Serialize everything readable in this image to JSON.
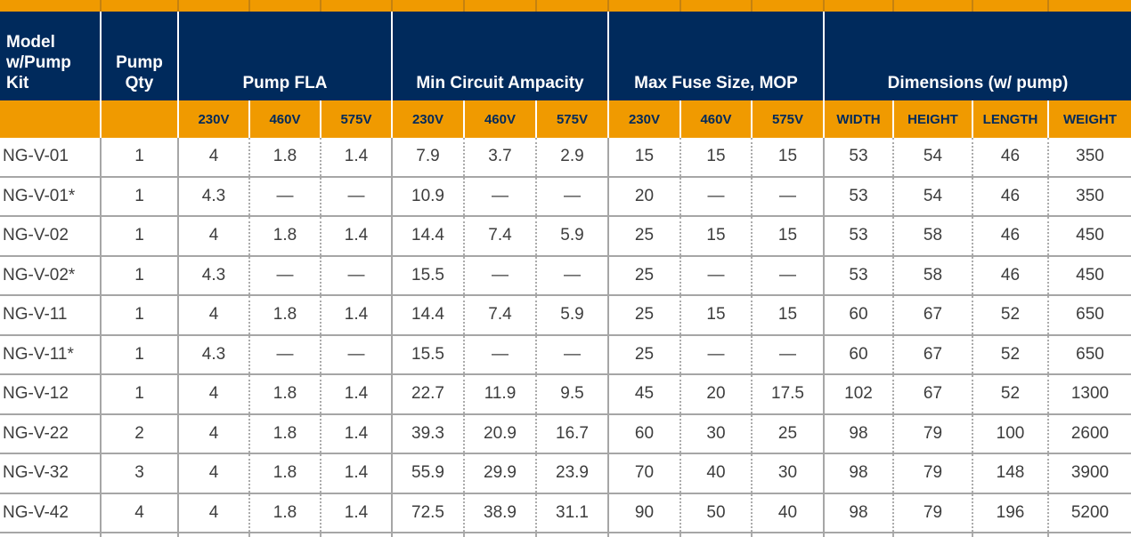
{
  "colors": {
    "navy": "#002A5C",
    "orange": "#F09A00",
    "orange_tick": "#C58210",
    "grid_solid": "#A6A6A6",
    "grid_dotted": "#ABABAB",
    "data_text": "#3D3D3D",
    "header_text": "#FFFFFF"
  },
  "table": {
    "column_groups": [
      {
        "label": "Model\nw/Pump\nKit",
        "span": 1
      },
      {
        "label": "Pump\nQty",
        "span": 1
      },
      {
        "label": "Pump FLA",
        "span": 3
      },
      {
        "label": "Min Circuit Ampacity",
        "span": 3
      },
      {
        "label": "Max Fuse Size, MOP",
        "span": 3
      },
      {
        "label": "Dimensions (w/ pump)",
        "span": 4
      }
    ],
    "subheaders": [
      "",
      "",
      "230V",
      "460V",
      "575V",
      "230V",
      "460V",
      "575V",
      "230V",
      "460V",
      "575V",
      "WIDTH",
      "HEIGHT",
      "LENGTH",
      "WEIGHT"
    ],
    "rows": [
      [
        "NG-V-01",
        "1",
        "4",
        "1.8",
        "1.4",
        "7.9",
        "3.7",
        "2.9",
        "15",
        "15",
        "15",
        "53",
        "54",
        "46",
        "350"
      ],
      [
        "NG-V-01*",
        "1",
        "4.3",
        "—",
        "—",
        "10.9",
        "—",
        "—",
        "20",
        "—",
        "—",
        "53",
        "54",
        "46",
        "350"
      ],
      [
        "NG-V-02",
        "1",
        "4",
        "1.8",
        "1.4",
        "14.4",
        "7.4",
        "5.9",
        "25",
        "15",
        "15",
        "53",
        "58",
        "46",
        "450"
      ],
      [
        "NG-V-02*",
        "1",
        "4.3",
        "—",
        "—",
        "15.5",
        "—",
        "—",
        "25",
        "—",
        "—",
        "53",
        "58",
        "46",
        "450"
      ],
      [
        "NG-V-11",
        "1",
        "4",
        "1.8",
        "1.4",
        "14.4",
        "7.4",
        "5.9",
        "25",
        "15",
        "15",
        "60",
        "67",
        "52",
        "650"
      ],
      [
        "NG-V-11*",
        "1",
        "4.3",
        "—",
        "—",
        "15.5",
        "—",
        "—",
        "25",
        "—",
        "—",
        "60",
        "67",
        "52",
        "650"
      ],
      [
        "NG-V-12",
        "1",
        "4",
        "1.8",
        "1.4",
        "22.7",
        "11.9",
        "9.5",
        "45",
        "20",
        "17.5",
        "102",
        "67",
        "52",
        "1300"
      ],
      [
        "NG-V-22",
        "2",
        "4",
        "1.8",
        "1.4",
        "39.3",
        "20.9",
        "16.7",
        "60",
        "30",
        "25",
        "98",
        "79",
        "100",
        "2600"
      ],
      [
        "NG-V-32",
        "3",
        "4",
        "1.8",
        "1.4",
        "55.9",
        "29.9",
        "23.9",
        "70",
        "40",
        "30",
        "98",
        "79",
        "148",
        "3900"
      ],
      [
        "NG-V-42",
        "4",
        "4",
        "1.8",
        "1.4",
        "72.5",
        "38.9",
        "31.1",
        "90",
        "50",
        "40",
        "98",
        "79",
        "196",
        "5200"
      ]
    ]
  }
}
